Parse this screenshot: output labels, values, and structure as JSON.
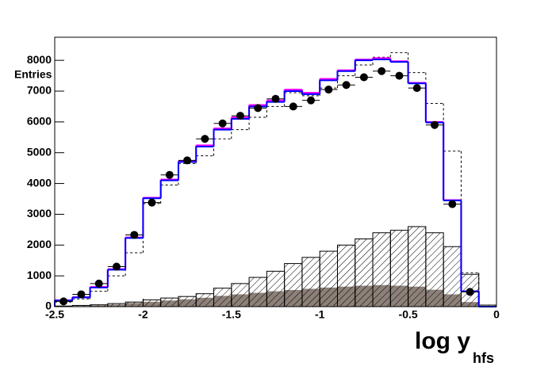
{
  "chart_data": {
    "type": "histogram",
    "y_label": "Entries",
    "x_label": "log y",
    "x_label_sub": "hfs",
    "bins": [
      -2.5,
      -2.4,
      -2.3,
      -2.2,
      -2.1,
      -2.0,
      -1.9,
      -1.8,
      -1.7,
      -1.6,
      -1.5,
      -1.4,
      -1.3,
      -1.2,
      -1.1,
      -1.0,
      -0.9,
      -0.8,
      -0.7,
      -0.6,
      -0.5,
      -0.4,
      -0.3,
      -0.2,
      -0.1,
      0
    ],
    "xlim": [
      -2.5,
      0
    ],
    "xticks": [
      -2.5,
      -2,
      -1.5,
      -1,
      -0.5,
      0
    ],
    "ylim": [
      0,
      8750
    ],
    "yticks": [
      0,
      1000,
      2000,
      3000,
      4000,
      5000,
      6000,
      7000,
      8000
    ],
    "series": [
      {
        "style": "filled",
        "color": "#8c8078",
        "values": [
          10,
          20,
          40,
          70,
          120,
          160,
          200,
          240,
          290,
          350,
          400,
          450,
          500,
          540,
          580,
          620,
          650,
          680,
          700,
          680,
          650,
          550,
          400,
          150,
          10
        ]
      },
      {
        "style": "hatched",
        "color": "#000000",
        "values": [
          20,
          40,
          60,
          100,
          150,
          220,
          280,
          330,
          420,
          600,
          750,
          950,
          1150,
          1400,
          1600,
          1800,
          2000,
          2200,
          2400,
          2480,
          2600,
          2400,
          1950,
          1050,
          50
        ]
      },
      {
        "style": "dashed",
        "color": "#000000",
        "values": [
          150,
          250,
          500,
          1000,
          1750,
          3350,
          3950,
          4650,
          4900,
          5450,
          5750,
          6150,
          6500,
          6950,
          6850,
          7100,
          7500,
          7850,
          8100,
          8250,
          7600,
          6600,
          5050,
          1100,
          50
        ]
      },
      {
        "style": "step",
        "color": "#ff00ff",
        "values": [
          210,
          310,
          640,
          1220,
          2250,
          3540,
          4130,
          4730,
          5240,
          5790,
          6150,
          6550,
          6700,
          7050,
          6950,
          7400,
          7680,
          8030,
          8070,
          7970,
          7270,
          6000,
          3460,
          500,
          0
        ]
      },
      {
        "style": "step",
        "color": "#0000ff",
        "values": [
          200,
          300,
          620,
          1200,
          2230,
          3520,
          4100,
          4700,
          5200,
          5750,
          6100,
          6500,
          6650,
          7000,
          6900,
          7350,
          7650,
          8000,
          8030,
          7950,
          7250,
          5980,
          3450,
          500,
          0
        ]
      },
      {
        "style": "points",
        "color": "#000000",
        "values": [
          170,
          400,
          750,
          1300,
          2330,
          3380,
          4280,
          4750,
          5450,
          5950,
          6200,
          6450,
          6750,
          6500,
          6700,
          7050,
          7200,
          7450,
          7650,
          7500,
          7100,
          5900,
          3330,
          480,
          null
        ]
      }
    ]
  }
}
